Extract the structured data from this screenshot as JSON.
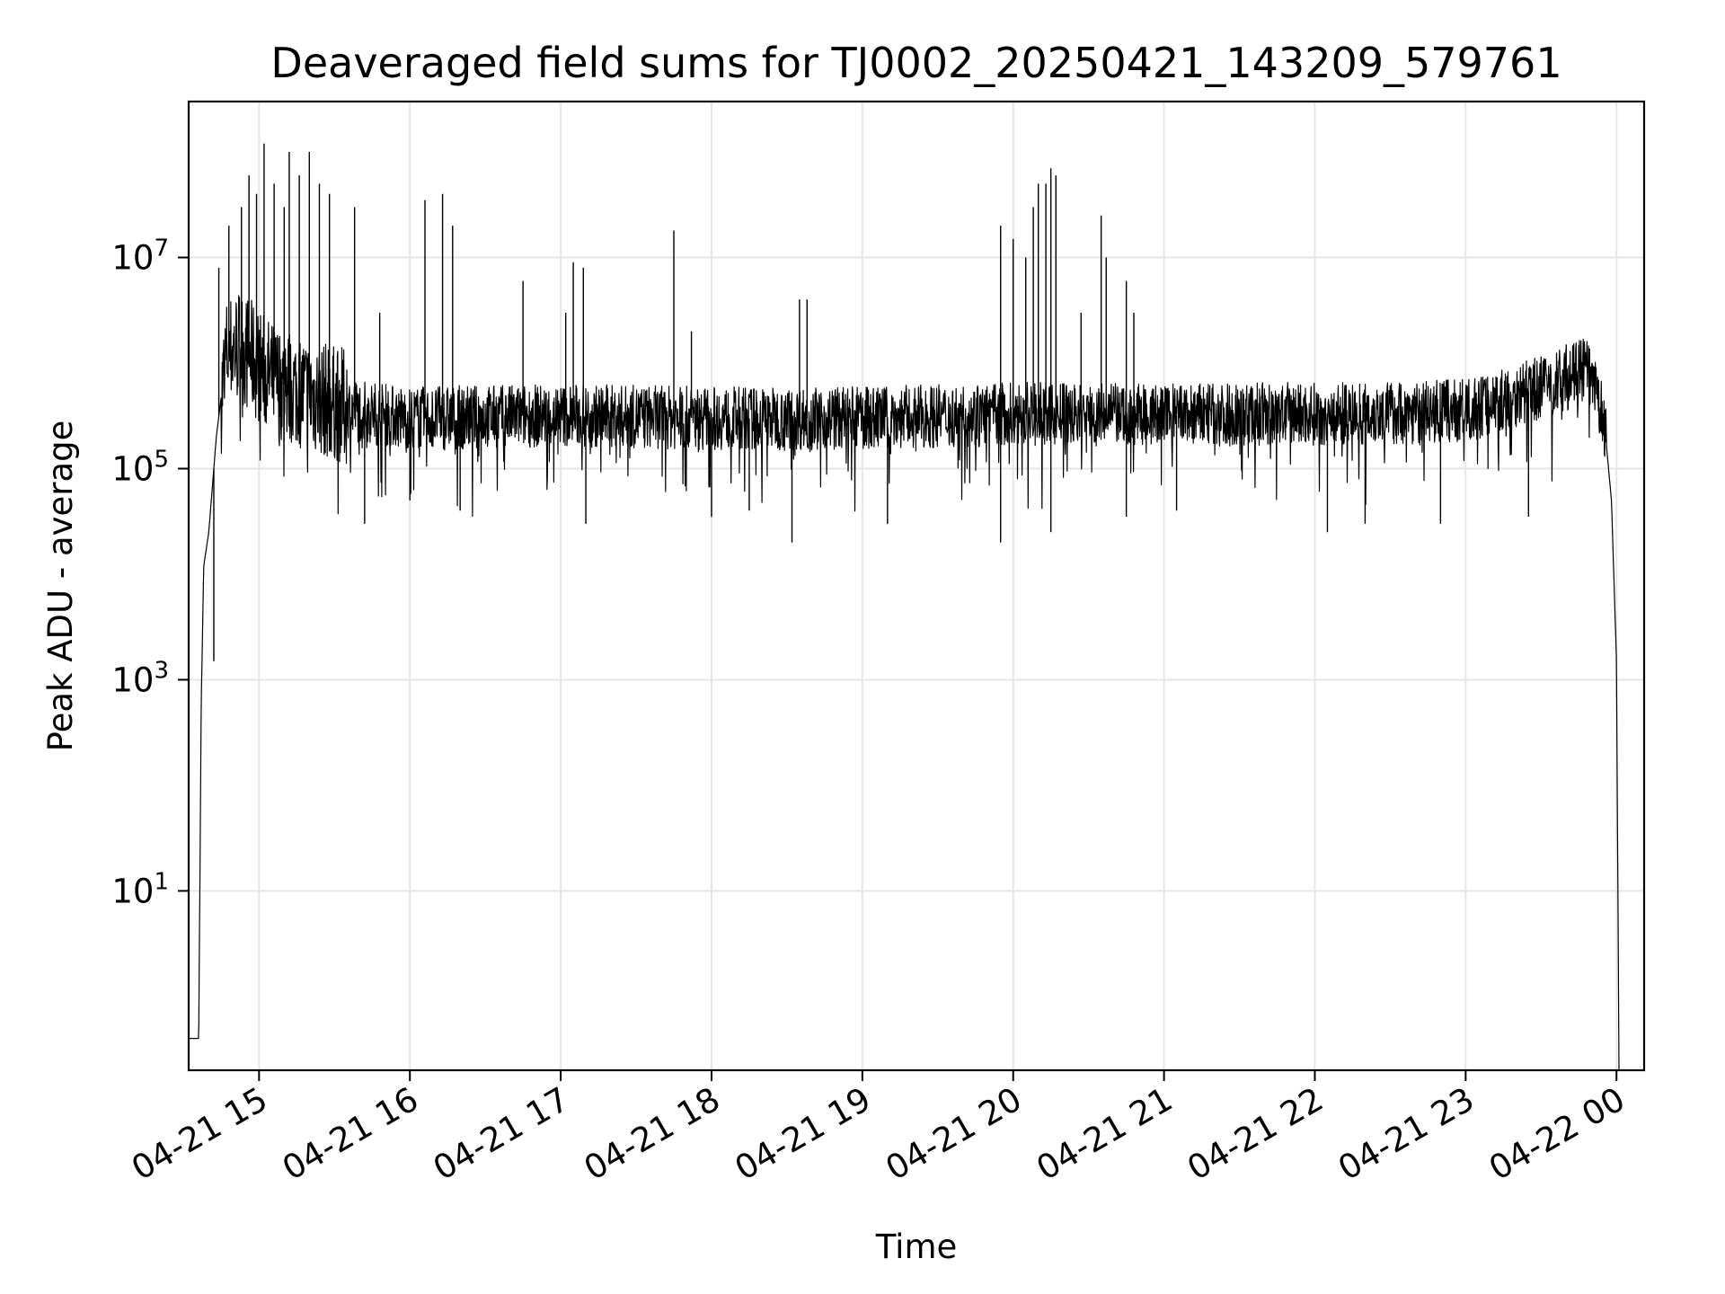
{
  "chart_data": {
    "type": "line",
    "title": "Deaveraged field sums for TJ0002_20250421_143209_579761",
    "xlabel": "Time",
    "ylabel": "Peak ADU - average",
    "x_scale": "time",
    "y_scale": "log",
    "xlim": [
      "2025-04-21 14:32",
      "2025-04-22 00:11"
    ],
    "ylim": [
      0.2,
      300000000.0
    ],
    "x_ticks": [
      {
        "value": "2025-04-21 15:00",
        "label": "04-21 15"
      },
      {
        "value": "2025-04-21 16:00",
        "label": "04-21 16"
      },
      {
        "value": "2025-04-21 17:00",
        "label": "04-21 17"
      },
      {
        "value": "2025-04-21 18:00",
        "label": "04-21 18"
      },
      {
        "value": "2025-04-21 19:00",
        "label": "04-21 19"
      },
      {
        "value": "2025-04-21 20:00",
        "label": "04-21 20"
      },
      {
        "value": "2025-04-21 21:00",
        "label": "04-21 21"
      },
      {
        "value": "2025-04-21 22:00",
        "label": "04-21 22"
      },
      {
        "value": "2025-04-21 23:00",
        "label": "04-21 23"
      },
      {
        "value": "2025-04-22 00:00",
        "label": "04-22 00"
      }
    ],
    "y_ticks": [
      {
        "value": 10,
        "base": "10",
        "exp": "1"
      },
      {
        "value": 1000,
        "base": "10",
        "exp": "3"
      },
      {
        "value": 100000,
        "base": "10",
        "exp": "5"
      },
      {
        "value": 10000000,
        "base": "10",
        "exp": "7"
      }
    ],
    "grid": true,
    "legend": "none",
    "line_color": "#000000",
    "grid_color": "#e6e6e6",
    "series": [
      {
        "values": [
          {
            "x": "2025-04-21 14:32",
            "y": 0.4
          },
          {
            "x": "2025-04-21 14:36",
            "y": 0.4
          },
          {
            "x": "2025-04-21 14:37",
            "y": 600
          },
          {
            "x": "2025-04-21 14:38",
            "y": 12000
          },
          {
            "x": "2025-04-21 14:40",
            "y": 25000
          },
          {
            "x": "2025-04-21 14:43",
            "y": 200000
          },
          {
            "x": "2025-04-21 14:47",
            "y": 1200000
          },
          {
            "x": "2025-04-21 14:52",
            "y": 1500000
          },
          {
            "x": "2025-04-21 15:05",
            "y": 700000
          },
          {
            "x": "2025-04-21 15:20",
            "y": 500000
          },
          {
            "x": "2025-04-21 15:40",
            "y": 350000
          },
          {
            "x": "2025-04-21 16:00",
            "y": 300000
          },
          {
            "x": "2025-04-21 17:00",
            "y": 320000
          },
          {
            "x": "2025-04-21 18:00",
            "y": 300000
          },
          {
            "x": "2025-04-21 19:00",
            "y": 300000
          },
          {
            "x": "2025-04-21 20:00",
            "y": 330000
          },
          {
            "x": "2025-04-21 21:00",
            "y": 320000
          },
          {
            "x": "2025-04-21 22:00",
            "y": 330000
          },
          {
            "x": "2025-04-21 23:00",
            "y": 350000
          },
          {
            "x": "2025-04-21 23:40",
            "y": 700000
          },
          {
            "x": "2025-04-21 23:48",
            "y": 900000
          },
          {
            "x": "2025-04-21 23:55",
            "y": 300000
          },
          {
            "x": "2025-04-21 23:58",
            "y": 50000
          },
          {
            "x": "2025-04-22 00:00",
            "y": 1500
          },
          {
            "x": "2025-04-22 00:01",
            "y": 0.2
          }
        ]
      }
    ],
    "spikes": [
      {
        "x": "2025-04-21 14:44",
        "y": 8000000
      },
      {
        "x": "2025-04-21 14:48",
        "y": 20000000
      },
      {
        "x": "2025-04-21 14:53",
        "y": 30000000
      },
      {
        "x": "2025-04-21 14:56",
        "y": 60000000
      },
      {
        "x": "2025-04-21 14:59",
        "y": 40000000
      },
      {
        "x": "2025-04-21 15:02",
        "y": 120000000
      },
      {
        "x": "2025-04-21 15:06",
        "y": 50000000
      },
      {
        "x": "2025-04-21 15:10",
        "y": 30000000
      },
      {
        "x": "2025-04-21 15:12",
        "y": 100000000
      },
      {
        "x": "2025-04-21 15:16",
        "y": 60000000
      },
      {
        "x": "2025-04-21 15:20",
        "y": 100000000
      },
      {
        "x": "2025-04-21 15:24",
        "y": 50000000
      },
      {
        "x": "2025-04-21 15:28",
        "y": 40000000
      },
      {
        "x": "2025-04-21 15:38",
        "y": 30000000
      },
      {
        "x": "2025-04-21 15:48",
        "y": 3000000
      },
      {
        "x": "2025-04-21 16:06",
        "y": 35000000
      },
      {
        "x": "2025-04-21 16:13",
        "y": 40000000
      },
      {
        "x": "2025-04-21 16:17",
        "y": 20000000
      },
      {
        "x": "2025-04-21 16:45",
        "y": 6000000
      },
      {
        "x": "2025-04-21 17:02",
        "y": 3000000
      },
      {
        "x": "2025-04-21 17:05",
        "y": 9000000
      },
      {
        "x": "2025-04-21 17:09",
        "y": 8000000
      },
      {
        "x": "2025-04-21 17:45",
        "y": 18000000
      },
      {
        "x": "2025-04-21 17:52",
        "y": 2000000
      },
      {
        "x": "2025-04-21 18:35",
        "y": 4000000
      },
      {
        "x": "2025-04-21 18:38",
        "y": 4000000
      },
      {
        "x": "2025-04-21 19:55",
        "y": 20000000
      },
      {
        "x": "2025-04-21 20:00",
        "y": 15000000
      },
      {
        "x": "2025-04-21 20:05",
        "y": 10000000
      },
      {
        "x": "2025-04-21 20:08",
        "y": 30000000
      },
      {
        "x": "2025-04-21 20:10",
        "y": 50000000
      },
      {
        "x": "2025-04-21 20:13",
        "y": 50000000
      },
      {
        "x": "2025-04-21 20:15",
        "y": 70000000
      },
      {
        "x": "2025-04-21 20:17",
        "y": 60000000
      },
      {
        "x": "2025-04-21 20:27",
        "y": 3000000
      },
      {
        "x": "2025-04-21 20:35",
        "y": 25000000
      },
      {
        "x": "2025-04-21 20:37",
        "y": 10000000
      },
      {
        "x": "2025-04-21 20:45",
        "y": 6000000
      },
      {
        "x": "2025-04-21 20:48",
        "y": 3000000
      },
      {
        "x": "2025-04-21 23:40",
        "y": 1500000
      }
    ],
    "dips": [
      {
        "x": "2025-04-21 14:42",
        "y": 1500
      },
      {
        "x": "2025-04-21 15:42",
        "y": 30000
      },
      {
        "x": "2025-04-21 16:00",
        "y": 50000
      },
      {
        "x": "2025-04-21 16:20",
        "y": 40000
      },
      {
        "x": "2025-04-21 17:10",
        "y": 30000
      },
      {
        "x": "2025-04-21 18:00",
        "y": 35000
      },
      {
        "x": "2025-04-21 18:15",
        "y": 40000
      },
      {
        "x": "2025-04-21 18:32",
        "y": 20000
      },
      {
        "x": "2025-04-21 19:10",
        "y": 30000
      },
      {
        "x": "2025-04-21 19:55",
        "y": 20000
      },
      {
        "x": "2025-04-21 20:15",
        "y": 25000
      },
      {
        "x": "2025-04-21 20:45",
        "y": 35000
      },
      {
        "x": "2025-04-21 21:05",
        "y": 40000
      },
      {
        "x": "2025-04-21 22:05",
        "y": 25000
      },
      {
        "x": "2025-04-21 22:20",
        "y": 30000
      },
      {
        "x": "2025-04-21 22:50",
        "y": 30000
      },
      {
        "x": "2025-04-21 23:25",
        "y": 35000
      }
    ]
  }
}
